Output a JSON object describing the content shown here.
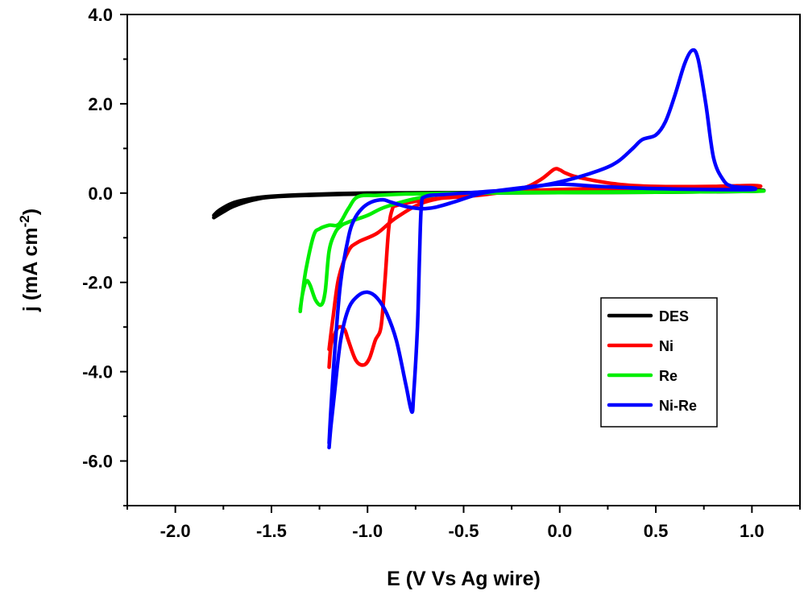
{
  "chart_data": {
    "type": "line",
    "title": "",
    "xlabel": "E (V Vs Ag wire)",
    "ylabel_main": "j (mA cm",
    "ylabel_sup": "-2",
    "ylabel_close": ")",
    "xlim": [
      -2.25,
      1.25
    ],
    "ylim": [
      -7.0,
      4.0
    ],
    "xticks": [
      -2.0,
      -1.5,
      -1.0,
      -0.5,
      0.0,
      0.5,
      1.0
    ],
    "xtick_labels": [
      "-2.0",
      "-1.5",
      "-1.0",
      "-0.5",
      "0.0",
      "0.5",
      "1.0"
    ],
    "yticks": [
      4.0,
      2.0,
      0.0,
      -2.0,
      -4.0,
      -6.0
    ],
    "ytick_labels": [
      "4.0",
      "2.0",
      "0.0",
      "-2.0",
      "-4.0",
      "-6.0"
    ],
    "grid": false,
    "legend_position": "lower-right",
    "series": [
      {
        "name": "DES",
        "color": "#000000",
        "points": [
          [
            -1.8,
            -0.55
          ],
          [
            -1.75,
            -0.42
          ],
          [
            -1.7,
            -0.3
          ],
          [
            -1.6,
            -0.16
          ],
          [
            -1.5,
            -0.09
          ],
          [
            -1.3,
            -0.05
          ],
          [
            -1.0,
            -0.02
          ],
          [
            -0.5,
            0.0
          ],
          [
            0.0,
            0.01
          ],
          [
            0.5,
            0.02
          ],
          [
            1.0,
            0.04
          ],
          [
            1.0,
            0.07
          ],
          [
            0.5,
            0.04
          ],
          [
            0.0,
            0.02
          ],
          [
            -0.5,
            0.01
          ],
          [
            -1.0,
            0.0
          ],
          [
            -1.3,
            -0.03
          ],
          [
            -1.5,
            -0.07
          ],
          [
            -1.6,
            -0.12
          ],
          [
            -1.7,
            -0.22
          ],
          [
            -1.77,
            -0.38
          ],
          [
            -1.8,
            -0.5
          ]
        ]
      },
      {
        "name": "Ni",
        "color": "#ff0000",
        "points": [
          [
            -1.2,
            -3.9
          ],
          [
            -1.19,
            -3.4
          ],
          [
            -1.17,
            -3.15
          ],
          [
            -1.15,
            -3.0
          ],
          [
            -1.12,
            -3.05
          ],
          [
            -1.1,
            -3.3
          ],
          [
            -1.06,
            -3.75
          ],
          [
            -1.02,
            -3.85
          ],
          [
            -0.99,
            -3.7
          ],
          [
            -0.96,
            -3.3
          ],
          [
            -0.93,
            -3.0
          ],
          [
            -0.91,
            -2.0
          ],
          [
            -0.89,
            -0.8
          ],
          [
            -0.87,
            -0.35
          ],
          [
            -0.85,
            -0.28
          ],
          [
            -0.7,
            -0.15
          ],
          [
            -0.4,
            -0.04
          ],
          [
            -0.2,
            0.1
          ],
          [
            -0.1,
            0.3
          ],
          [
            -0.03,
            0.53
          ],
          [
            0.0,
            0.52
          ],
          [
            0.03,
            0.45
          ],
          [
            0.1,
            0.35
          ],
          [
            0.3,
            0.2
          ],
          [
            0.5,
            0.15
          ],
          [
            0.8,
            0.15
          ],
          [
            1.0,
            0.17
          ],
          [
            1.0,
            0.14
          ],
          [
            0.5,
            0.12
          ],
          [
            0.2,
            0.1
          ],
          [
            -0.2,
            0.05
          ],
          [
            -0.5,
            -0.05
          ],
          [
            -0.7,
            -0.2
          ],
          [
            -0.85,
            -0.55
          ],
          [
            -0.95,
            -0.9
          ],
          [
            -1.05,
            -1.1
          ],
          [
            -1.1,
            -1.3
          ],
          [
            -1.15,
            -1.9
          ],
          [
            -1.18,
            -2.8
          ],
          [
            -1.2,
            -3.5
          ]
        ]
      },
      {
        "name": "Re",
        "color": "#00ee00",
        "points": [
          [
            -1.35,
            -2.65
          ],
          [
            -1.34,
            -2.3
          ],
          [
            -1.32,
            -1.98
          ],
          [
            -1.3,
            -2.05
          ],
          [
            -1.27,
            -2.4
          ],
          [
            -1.24,
            -2.5
          ],
          [
            -1.22,
            -2.2
          ],
          [
            -1.2,
            -1.3
          ],
          [
            -1.17,
            -0.9
          ],
          [
            -1.14,
            -0.74
          ],
          [
            -1.1,
            -0.65
          ],
          [
            -1.0,
            -0.5
          ],
          [
            -0.9,
            -0.3
          ],
          [
            -0.7,
            -0.08
          ],
          [
            -0.5,
            0.0
          ],
          [
            0.0,
            0.02
          ],
          [
            0.5,
            0.03
          ],
          [
            1.0,
            0.05
          ],
          [
            1.0,
            0.04
          ],
          [
            0.5,
            0.02
          ],
          [
            0.0,
            0.01
          ],
          [
            -0.5,
            0.0
          ],
          [
            -0.8,
            -0.02
          ],
          [
            -0.95,
            -0.05
          ],
          [
            -1.05,
            -0.08
          ],
          [
            -1.1,
            -0.35
          ],
          [
            -1.15,
            -0.7
          ],
          [
            -1.2,
            -0.72
          ],
          [
            -1.25,
            -0.8
          ],
          [
            -1.28,
            -0.95
          ],
          [
            -1.32,
            -1.7
          ],
          [
            -1.34,
            -2.3
          ],
          [
            -1.35,
            -2.6
          ]
        ]
      },
      {
        "name": "Ni-Re",
        "color": "#0000ff",
        "points": [
          [
            -1.2,
            -5.7
          ],
          [
            -1.19,
            -5.2
          ],
          [
            -1.17,
            -4.4
          ],
          [
            -1.14,
            -3.3
          ],
          [
            -1.1,
            -2.6
          ],
          [
            -1.05,
            -2.3
          ],
          [
            -1.0,
            -2.22
          ],
          [
            -0.95,
            -2.35
          ],
          [
            -0.9,
            -2.7
          ],
          [
            -0.85,
            -3.3
          ],
          [
            -0.8,
            -4.3
          ],
          [
            -0.77,
            -4.9
          ],
          [
            -0.76,
            -4.5
          ],
          [
            -0.74,
            -3.0
          ],
          [
            -0.73,
            -1.5
          ],
          [
            -0.72,
            -0.3
          ],
          [
            -0.7,
            -0.08
          ],
          [
            -0.6,
            -0.03
          ],
          [
            -0.4,
            0.03
          ],
          [
            -0.2,
            0.1
          ],
          [
            0.0,
            0.25
          ],
          [
            0.2,
            0.5
          ],
          [
            0.3,
            0.7
          ],
          [
            0.38,
            1.0
          ],
          [
            0.43,
            1.2
          ],
          [
            0.5,
            1.3
          ],
          [
            0.55,
            1.6
          ],
          [
            0.6,
            2.2
          ],
          [
            0.65,
            2.9
          ],
          [
            0.69,
            3.2
          ],
          [
            0.72,
            3.0
          ],
          [
            0.76,
            2.0
          ],
          [
            0.8,
            0.8
          ],
          [
            0.85,
            0.3
          ],
          [
            0.9,
            0.15
          ],
          [
            1.0,
            0.12
          ],
          [
            1.0,
            0.08
          ],
          [
            0.8,
            0.08
          ],
          [
            0.5,
            0.1
          ],
          [
            0.2,
            0.15
          ],
          [
            0.0,
            0.2
          ],
          [
            -0.2,
            0.12
          ],
          [
            -0.4,
            0.0
          ],
          [
            -0.55,
            -0.2
          ],
          [
            -0.65,
            -0.32
          ],
          [
            -0.72,
            -0.35
          ],
          [
            -0.8,
            -0.3
          ],
          [
            -0.88,
            -0.2
          ],
          [
            -0.92,
            -0.15
          ],
          [
            -0.98,
            -0.2
          ],
          [
            -1.03,
            -0.35
          ],
          [
            -1.07,
            -0.6
          ],
          [
            -1.1,
            -1.0
          ],
          [
            -1.14,
            -2.0
          ],
          [
            -1.17,
            -3.5
          ],
          [
            -1.19,
            -4.8
          ],
          [
            -1.2,
            -5.6
          ]
        ]
      }
    ]
  }
}
